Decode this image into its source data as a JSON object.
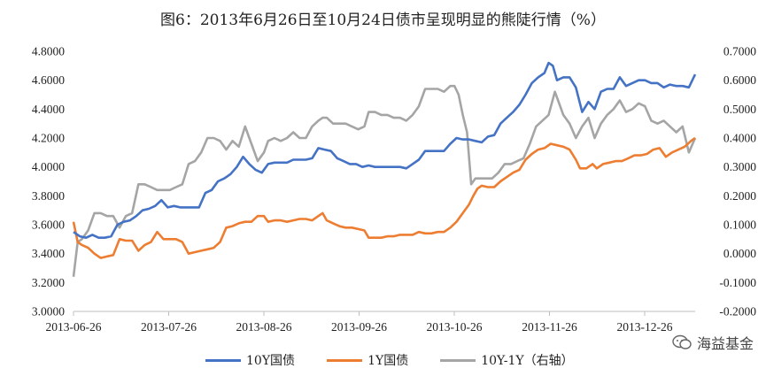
{
  "chart_data": {
    "type": "line",
    "title": "图6：2013年6月26日至10月24日债市呈现明显的熊陡行情（%）",
    "x_ticks": [
      "2013-06-26",
      "2013-07-26",
      "2013-08-26",
      "2013-09-26",
      "2013-10-26",
      "2013-11-26",
      "2013-12-26"
    ],
    "y_left": {
      "ylim": [
        3.0,
        4.8
      ],
      "step": 0.2,
      "tick_labels": [
        "3.0000",
        "3.2000",
        "3.4000",
        "3.6000",
        "3.8000",
        "4.0000",
        "4.2000",
        "4.4000",
        "4.6000",
        "4.8000"
      ]
    },
    "y_right": {
      "ylim": [
        -0.2,
        0.7
      ],
      "step": 0.1,
      "tick_labels": [
        "-0.2000",
        "-0.1000",
        "0.0000",
        "0.1000",
        "0.2000",
        "0.3000",
        "0.4000",
        "0.5000",
        "0.6000",
        "0.7000"
      ]
    },
    "series": [
      {
        "name": "10Y国债",
        "axis": "left",
        "color": "#4472C4",
        "points": [
          [
            0,
            3.55
          ],
          [
            3,
            3.52
          ],
          [
            6,
            3.51
          ],
          [
            9,
            3.53
          ],
          [
            12,
            3.51
          ],
          [
            15,
            3.51
          ],
          [
            18,
            3.52
          ],
          [
            21,
            3.6
          ],
          [
            24,
            3.62
          ],
          [
            27,
            3.63
          ],
          [
            30,
            3.66
          ],
          [
            33,
            3.7
          ],
          [
            36,
            3.71
          ],
          [
            39,
            3.73
          ],
          [
            42,
            3.77
          ],
          [
            45,
            3.72
          ],
          [
            48,
            3.73
          ],
          [
            51,
            3.72
          ],
          [
            54,
            3.72
          ],
          [
            57,
            3.72
          ],
          [
            60,
            3.72
          ],
          [
            63,
            3.82
          ],
          [
            66,
            3.84
          ],
          [
            69,
            3.9
          ],
          [
            72,
            3.92
          ],
          [
            75,
            3.95
          ],
          [
            78,
            4.0
          ],
          [
            81,
            4.07
          ],
          [
            84,
            4.02
          ],
          [
            87,
            3.98
          ],
          [
            90,
            3.96
          ],
          [
            93,
            4.02
          ],
          [
            96,
            4.03
          ],
          [
            99,
            4.03
          ],
          [
            102,
            4.03
          ],
          [
            105,
            4.05
          ],
          [
            108,
            4.05
          ],
          [
            111,
            4.05
          ],
          [
            114,
            4.06
          ],
          [
            117,
            4.13
          ],
          [
            120,
            4.12
          ],
          [
            123,
            4.11
          ],
          [
            126,
            4.06
          ],
          [
            129,
            4.04
          ],
          [
            132,
            4.02
          ],
          [
            135,
            4.02
          ],
          [
            138,
            4.0
          ],
          [
            141,
            4.01
          ],
          [
            144,
            4.0
          ],
          [
            150,
            4.0
          ],
          [
            156,
            4.0
          ],
          [
            159,
            3.99
          ],
          [
            162,
            4.02
          ],
          [
            165,
            4.05
          ],
          [
            168,
            4.11
          ],
          [
            171,
            4.11
          ],
          [
            174,
            4.11
          ],
          [
            177,
            4.11
          ],
          [
            180,
            4.16
          ],
          [
            183,
            4.2
          ],
          [
            186,
            4.19
          ],
          [
            189,
            4.19
          ],
          [
            192,
            4.18
          ],
          [
            195,
            4.17
          ],
          [
            198,
            4.21
          ],
          [
            201,
            4.22
          ],
          [
            204,
            4.3
          ],
          [
            207,
            4.34
          ],
          [
            210,
            4.38
          ],
          [
            213,
            4.43
          ],
          [
            216,
            4.5
          ],
          [
            219,
            4.58
          ],
          [
            222,
            4.62
          ],
          [
            225,
            4.65
          ],
          [
            227,
            4.72
          ],
          [
            229,
            4.7
          ],
          [
            231,
            4.6
          ],
          [
            234,
            4.62
          ],
          [
            237,
            4.62
          ],
          [
            240,
            4.55
          ],
          [
            243,
            4.38
          ],
          [
            246,
            4.45
          ],
          [
            249,
            4.4
          ],
          [
            252,
            4.52
          ],
          [
            255,
            4.54
          ],
          [
            258,
            4.54
          ],
          [
            261,
            4.62
          ],
          [
            264,
            4.56
          ],
          [
            267,
            4.58
          ],
          [
            270,
            4.6
          ],
          [
            273,
            4.6
          ],
          [
            276,
            4.58
          ],
          [
            279,
            4.58
          ],
          [
            282,
            4.55
          ],
          [
            285,
            4.57
          ],
          [
            288,
            4.56
          ],
          [
            291,
            4.56
          ],
          [
            294,
            4.55
          ],
          [
            297,
            4.64
          ]
        ]
      },
      {
        "name": "1Y国债",
        "axis": "left",
        "color": "#ED7D31",
        "points": [
          [
            0,
            3.62
          ],
          [
            2,
            3.48
          ],
          [
            4,
            3.46
          ],
          [
            7,
            3.44
          ],
          [
            10,
            3.4
          ],
          [
            13,
            3.37
          ],
          [
            16,
            3.38
          ],
          [
            19,
            3.39
          ],
          [
            22,
            3.5
          ],
          [
            25,
            3.49
          ],
          [
            28,
            3.49
          ],
          [
            31,
            3.42
          ],
          [
            34,
            3.46
          ],
          [
            37,
            3.48
          ],
          [
            40,
            3.55
          ],
          [
            43,
            3.5
          ],
          [
            46,
            3.5
          ],
          [
            49,
            3.5
          ],
          [
            52,
            3.48
          ],
          [
            55,
            3.4
          ],
          [
            58,
            3.41
          ],
          [
            61,
            3.42
          ],
          [
            64,
            3.43
          ],
          [
            67,
            3.44
          ],
          [
            70,
            3.48
          ],
          [
            73,
            3.58
          ],
          [
            76,
            3.59
          ],
          [
            79,
            3.61
          ],
          [
            82,
            3.62
          ],
          [
            85,
            3.62
          ],
          [
            88,
            3.66
          ],
          [
            91,
            3.66
          ],
          [
            93,
            3.62
          ],
          [
            96,
            3.63
          ],
          [
            99,
            3.63
          ],
          [
            102,
            3.62
          ],
          [
            105,
            3.63
          ],
          [
            108,
            3.64
          ],
          [
            111,
            3.64
          ],
          [
            114,
            3.63
          ],
          [
            117,
            3.66
          ],
          [
            119,
            3.68
          ],
          [
            121,
            3.63
          ],
          [
            124,
            3.61
          ],
          [
            127,
            3.59
          ],
          [
            130,
            3.58
          ],
          [
            133,
            3.58
          ],
          [
            136,
            3.57
          ],
          [
            139,
            3.56
          ],
          [
            141,
            3.51
          ],
          [
            144,
            3.51
          ],
          [
            147,
            3.51
          ],
          [
            150,
            3.52
          ],
          [
            153,
            3.52
          ],
          [
            156,
            3.53
          ],
          [
            159,
            3.53
          ],
          [
            162,
            3.53
          ],
          [
            165,
            3.55
          ],
          [
            168,
            3.54
          ],
          [
            171,
            3.54
          ],
          [
            174,
            3.55
          ],
          [
            177,
            3.55
          ],
          [
            180,
            3.58
          ],
          [
            183,
            3.62
          ],
          [
            186,
            3.68
          ],
          [
            189,
            3.74
          ],
          [
            191,
            3.8
          ],
          [
            193,
            3.85
          ],
          [
            195,
            3.87
          ],
          [
            198,
            3.86
          ],
          [
            201,
            3.86
          ],
          [
            204,
            3.9
          ],
          [
            207,
            3.93
          ],
          [
            210,
            3.96
          ],
          [
            213,
            3.98
          ],
          [
            216,
            4.05
          ],
          [
            219,
            4.09
          ],
          [
            222,
            4.12
          ],
          [
            225,
            4.13
          ],
          [
            228,
            4.16
          ],
          [
            231,
            4.15
          ],
          [
            234,
            4.14
          ],
          [
            237,
            4.12
          ],
          [
            240,
            4.05
          ],
          [
            242,
            3.99
          ],
          [
            245,
            3.99
          ],
          [
            248,
            4.02
          ],
          [
            250,
            3.99
          ],
          [
            253,
            4.02
          ],
          [
            256,
            4.03
          ],
          [
            259,
            4.04
          ],
          [
            262,
            4.04
          ],
          [
            265,
            4.06
          ],
          [
            268,
            4.08
          ],
          [
            271,
            4.08
          ],
          [
            274,
            4.09
          ],
          [
            277,
            4.12
          ],
          [
            280,
            4.13
          ],
          [
            283,
            4.07
          ],
          [
            286,
            4.1
          ],
          [
            289,
            4.12
          ],
          [
            292,
            4.14
          ],
          [
            295,
            4.18
          ],
          [
            297,
            4.2
          ]
        ]
      },
      {
        "name": "10Y-1Y（右轴）",
        "axis": "right",
        "color": "#A5A5A5",
        "points": [
          [
            0,
            -0.08
          ],
          [
            2,
            0.04
          ],
          [
            4,
            0.05
          ],
          [
            7,
            0.08
          ],
          [
            10,
            0.14
          ],
          [
            13,
            0.14
          ],
          [
            16,
            0.13
          ],
          [
            19,
            0.13
          ],
          [
            22,
            0.09
          ],
          [
            25,
            0.13
          ],
          [
            28,
            0.14
          ],
          [
            31,
            0.24
          ],
          [
            34,
            0.24
          ],
          [
            37,
            0.23
          ],
          [
            40,
            0.22
          ],
          [
            43,
            0.22
          ],
          [
            46,
            0.22
          ],
          [
            49,
            0.23
          ],
          [
            52,
            0.24
          ],
          [
            55,
            0.31
          ],
          [
            58,
            0.32
          ],
          [
            61,
            0.35
          ],
          [
            64,
            0.4
          ],
          [
            67,
            0.4
          ],
          [
            70,
            0.39
          ],
          [
            73,
            0.36
          ],
          [
            76,
            0.39
          ],
          [
            79,
            0.37
          ],
          [
            82,
            0.44
          ],
          [
            85,
            0.38
          ],
          [
            88,
            0.32
          ],
          [
            91,
            0.35
          ],
          [
            93,
            0.39
          ],
          [
            96,
            0.4
          ],
          [
            99,
            0.39
          ],
          [
            102,
            0.4
          ],
          [
            105,
            0.42
          ],
          [
            108,
            0.4
          ],
          [
            111,
            0.4
          ],
          [
            114,
            0.44
          ],
          [
            117,
            0.46
          ],
          [
            119,
            0.47
          ],
          [
            121,
            0.47
          ],
          [
            124,
            0.45
          ],
          [
            127,
            0.45
          ],
          [
            130,
            0.45
          ],
          [
            133,
            0.44
          ],
          [
            136,
            0.43
          ],
          [
            139,
            0.44
          ],
          [
            141,
            0.49
          ],
          [
            144,
            0.49
          ],
          [
            147,
            0.48
          ],
          [
            150,
            0.48
          ],
          [
            153,
            0.47
          ],
          [
            156,
            0.47
          ],
          [
            159,
            0.46
          ],
          [
            162,
            0.48
          ],
          [
            165,
            0.51
          ],
          [
            168,
            0.57
          ],
          [
            171,
            0.57
          ],
          [
            174,
            0.57
          ],
          [
            177,
            0.56
          ],
          [
            180,
            0.58
          ],
          [
            182,
            0.58
          ],
          [
            184,
            0.55
          ],
          [
            186,
            0.48
          ],
          [
            188,
            0.42
          ],
          [
            190,
            0.24
          ],
          [
            192,
            0.26
          ],
          [
            194,
            0.26
          ],
          [
            197,
            0.26
          ],
          [
            200,
            0.26
          ],
          [
            203,
            0.28
          ],
          [
            206,
            0.31
          ],
          [
            209,
            0.31
          ],
          [
            212,
            0.32
          ],
          [
            215,
            0.33
          ],
          [
            218,
            0.38
          ],
          [
            221,
            0.44
          ],
          [
            224,
            0.46
          ],
          [
            227,
            0.48
          ],
          [
            230,
            0.56
          ],
          [
            232,
            0.52
          ],
          [
            234,
            0.48
          ],
          [
            237,
            0.45
          ],
          [
            240,
            0.4
          ],
          [
            243,
            0.44
          ],
          [
            246,
            0.47
          ],
          [
            249,
            0.4
          ],
          [
            252,
            0.45
          ],
          [
            255,
            0.48
          ],
          [
            258,
            0.5
          ],
          [
            261,
            0.53
          ],
          [
            264,
            0.49
          ],
          [
            267,
            0.5
          ],
          [
            270,
            0.52
          ],
          [
            273,
            0.51
          ],
          [
            276,
            0.46
          ],
          [
            279,
            0.45
          ],
          [
            282,
            0.46
          ],
          [
            285,
            0.44
          ],
          [
            288,
            0.42
          ],
          [
            291,
            0.44
          ],
          [
            294,
            0.35
          ],
          [
            297,
            0.4
          ]
        ]
      }
    ],
    "legend_position": "bottom",
    "grid": false
  },
  "watermark": {
    "label": "海益基金",
    "icon": "wechat-icon"
  }
}
